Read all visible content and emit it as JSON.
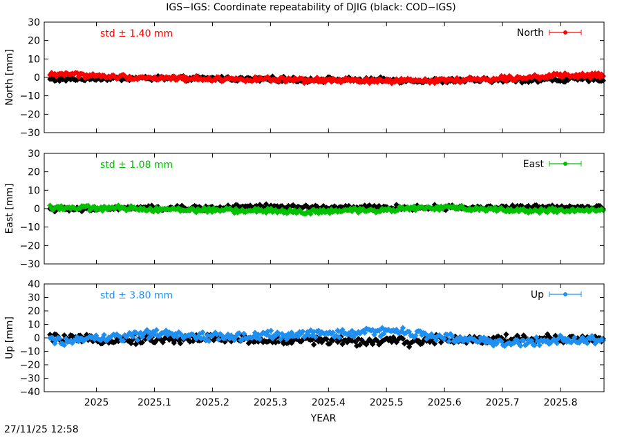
{
  "title": "IGS−IGS: Coordinate repeatability of DJIG (black: COD−IGS)",
  "xlabel": "YEAR",
  "timestamp": "27/11/25 12:58",
  "colors": {
    "reference": "#000000",
    "north": "#ff0000",
    "east": "#00c000",
    "up": "#1f8ff0",
    "zero_line": "#999999"
  },
  "chart_data": [
    {
      "type": "scatter",
      "component": "North",
      "ylabel": "North [mm]",
      "std_label": "std ± 1.40 mm",
      "legend": "North",
      "legend_position": "top-right",
      "color": "#ff0000",
      "xlim": [
        2024.91,
        2025.875
      ],
      "ylim": [
        -30,
        30
      ],
      "ytick_labels": [
        "30",
        "20",
        "10",
        "0",
        "−10",
        "−20",
        "−30"
      ],
      "xtick_labels": [
        "2025",
        "2025.1",
        "2025.2",
        "2025.3",
        "2025.4",
        "2025.5",
        "2025.6",
        "2025.7",
        "2025.8"
      ],
      "series": [
        {
          "name": "North",
          "color": "#ff0000",
          "x": [
            2024.92,
            2024.95,
            2024.98,
            2025.01,
            2025.05,
            2025.1,
            2025.15,
            2025.2,
            2025.25,
            2025.3,
            2025.35,
            2025.4,
            2025.45,
            2025.5,
            2025.55,
            2025.6,
            2025.65,
            2025.7,
            2025.75,
            2025.8,
            2025.85,
            2025.87
          ],
          "y": [
            1.5,
            2.0,
            1.2,
            0.5,
            0.2,
            -0.3,
            -0.5,
            -0.8,
            -1.0,
            -1.2,
            -1.8,
            -1.5,
            -1.8,
            -2.0,
            -1.8,
            -1.5,
            -1.2,
            -0.5,
            0.3,
            0.8,
            1.0,
            1.2
          ]
        },
        {
          "name": "COD−IGS",
          "color": "#000000",
          "x": [
            2024.92,
            2024.95,
            2024.98,
            2025.01,
            2025.05,
            2025.1,
            2025.15,
            2025.2,
            2025.25,
            2025.3,
            2025.35,
            2025.4,
            2025.45,
            2025.5,
            2025.55,
            2025.6,
            2025.65,
            2025.7,
            2025.75,
            2025.8,
            2025.85,
            2025.87
          ],
          "y": [
            -1.0,
            -1.0,
            -0.8,
            -0.5,
            -0.5,
            -0.5,
            -0.8,
            -0.6,
            -0.8,
            -1.0,
            -1.2,
            -1.2,
            -1.5,
            -1.5,
            -1.8,
            -1.8,
            -1.6,
            -1.5,
            -1.4,
            -1.2,
            -1.2,
            -1.0
          ]
        }
      ]
    },
    {
      "type": "scatter",
      "component": "East",
      "ylabel": "East [mm]",
      "std_label": "std ± 1.08 mm",
      "legend": "East",
      "legend_position": "top-right",
      "color": "#00c000",
      "xlim": [
        2024.91,
        2025.875
      ],
      "ylim": [
        -30,
        30
      ],
      "ytick_labels": [
        "30",
        "20",
        "10",
        "0",
        "−10",
        "−20",
        "−30"
      ],
      "xtick_labels": [
        "2025",
        "2025.1",
        "2025.2",
        "2025.3",
        "2025.4",
        "2025.5",
        "2025.6",
        "2025.7",
        "2025.8"
      ],
      "series": [
        {
          "name": "East",
          "color": "#00c000",
          "x": [
            2024.92,
            2024.95,
            2024.98,
            2025.01,
            2025.05,
            2025.1,
            2025.15,
            2025.2,
            2025.25,
            2025.3,
            2025.35,
            2025.4,
            2025.45,
            2025.5,
            2025.55,
            2025.6,
            2025.65,
            2025.7,
            2025.75,
            2025.8,
            2025.85,
            2025.87
          ],
          "y": [
            0.8,
            0.5,
            0.3,
            0.2,
            0.2,
            -0.2,
            -0.5,
            -0.8,
            -1.0,
            -1.2,
            -1.8,
            -1.5,
            -1.0,
            -0.5,
            0.2,
            0.5,
            0.2,
            -0.5,
            -1.0,
            -1.0,
            -1.2,
            -1.5
          ]
        },
        {
          "name": "COD−IGS",
          "color": "#000000",
          "x": [
            2024.92,
            2024.95,
            2024.98,
            2025.01,
            2025.05,
            2025.1,
            2025.15,
            2025.2,
            2025.25,
            2025.3,
            2025.35,
            2025.4,
            2025.45,
            2025.5,
            2025.55,
            2025.6,
            2025.65,
            2025.7,
            2025.75,
            2025.8,
            2025.85,
            2025.87
          ],
          "y": [
            0.0,
            -0.5,
            -0.5,
            0.0,
            0.2,
            0.2,
            0.3,
            0.5,
            0.8,
            1.0,
            0.8,
            0.5,
            0.5,
            0.6,
            0.5,
            0.5,
            0.5,
            0.6,
            0.6,
            0.8,
            0.8,
            0.6
          ]
        }
      ]
    },
    {
      "type": "scatter",
      "component": "Up",
      "ylabel": "Up [mm]",
      "std_label": "std ± 3.80 mm",
      "legend": "Up",
      "legend_position": "top-right",
      "color": "#1f8ff0",
      "xlim": [
        2024.91,
        2025.875
      ],
      "ylim": [
        -40,
        40
      ],
      "ytick_labels": [
        "40",
        "30",
        "20",
        "10",
        "0",
        "−10",
        "−20",
        "−30",
        "−40"
      ],
      "xtick_labels": [
        "2025",
        "2025.1",
        "2025.2",
        "2025.3",
        "2025.4",
        "2025.5",
        "2025.6",
        "2025.7",
        "2025.8"
      ],
      "series": [
        {
          "name": "Up",
          "color": "#1f8ff0",
          "x": [
            2024.92,
            2024.95,
            2024.98,
            2025.01,
            2025.05,
            2025.1,
            2025.15,
            2025.2,
            2025.25,
            2025.3,
            2025.35,
            2025.4,
            2025.45,
            2025.5,
            2025.55,
            2025.6,
            2025.65,
            2025.7,
            2025.75,
            2025.8,
            2025.85,
            2025.87
          ],
          "y": [
            -2.0,
            -3.0,
            -1.0,
            0.0,
            1.0,
            3.0,
            2.0,
            1.0,
            0.5,
            2.0,
            2.5,
            3.0,
            4.0,
            5.0,
            3.0,
            1.0,
            -2.0,
            -4.0,
            -3.0,
            -1.0,
            -2.0,
            -3.0
          ]
        },
        {
          "name": "COD−IGS",
          "color": "#000000",
          "x": [
            2024.92,
            2024.95,
            2024.98,
            2025.01,
            2025.05,
            2025.1,
            2025.15,
            2025.2,
            2025.25,
            2025.3,
            2025.35,
            2025.4,
            2025.45,
            2025.5,
            2025.55,
            2025.6,
            2025.65,
            2025.7,
            2025.75,
            2025.8,
            2025.85,
            2025.87
          ],
          "y": [
            0.0,
            -1.0,
            -1.5,
            -1.0,
            -1.0,
            -1.5,
            -0.5,
            -0.5,
            -1.0,
            -2.0,
            -1.5,
            -2.0,
            -2.5,
            -2.5,
            -3.0,
            -0.5,
            -1.5,
            -0.5,
            -1.0,
            -0.5,
            -1.0,
            -1.5
          ]
        }
      ]
    }
  ]
}
